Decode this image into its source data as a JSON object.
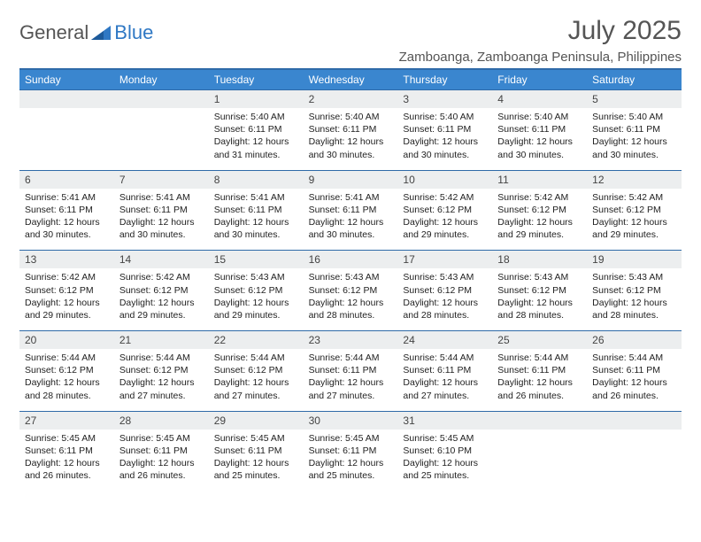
{
  "logo": {
    "part1": "General",
    "part2": "Blue"
  },
  "title": "July 2025",
  "location": "Zamboanga, Zamboanga Peninsula, Philippines",
  "colors": {
    "header_bg": "#3a86cf",
    "border": "#2f6aa8",
    "daynum_bg": "#eceeef",
    "text": "#222222",
    "title_text": "#555555",
    "logo_blue": "#2f78c4"
  },
  "day_headers": [
    "Sunday",
    "Monday",
    "Tuesday",
    "Wednesday",
    "Thursday",
    "Friday",
    "Saturday"
  ],
  "weeks": [
    [
      {
        "num": "",
        "sunrise": "",
        "sunset": "",
        "daylight1": "",
        "daylight2": ""
      },
      {
        "num": "",
        "sunrise": "",
        "sunset": "",
        "daylight1": "",
        "daylight2": ""
      },
      {
        "num": "1",
        "sunrise": "Sunrise: 5:40 AM",
        "sunset": "Sunset: 6:11 PM",
        "daylight1": "Daylight: 12 hours",
        "daylight2": "and 31 minutes."
      },
      {
        "num": "2",
        "sunrise": "Sunrise: 5:40 AM",
        "sunset": "Sunset: 6:11 PM",
        "daylight1": "Daylight: 12 hours",
        "daylight2": "and 30 minutes."
      },
      {
        "num": "3",
        "sunrise": "Sunrise: 5:40 AM",
        "sunset": "Sunset: 6:11 PM",
        "daylight1": "Daylight: 12 hours",
        "daylight2": "and 30 minutes."
      },
      {
        "num": "4",
        "sunrise": "Sunrise: 5:40 AM",
        "sunset": "Sunset: 6:11 PM",
        "daylight1": "Daylight: 12 hours",
        "daylight2": "and 30 minutes."
      },
      {
        "num": "5",
        "sunrise": "Sunrise: 5:40 AM",
        "sunset": "Sunset: 6:11 PM",
        "daylight1": "Daylight: 12 hours",
        "daylight2": "and 30 minutes."
      }
    ],
    [
      {
        "num": "6",
        "sunrise": "Sunrise: 5:41 AM",
        "sunset": "Sunset: 6:11 PM",
        "daylight1": "Daylight: 12 hours",
        "daylight2": "and 30 minutes."
      },
      {
        "num": "7",
        "sunrise": "Sunrise: 5:41 AM",
        "sunset": "Sunset: 6:11 PM",
        "daylight1": "Daylight: 12 hours",
        "daylight2": "and 30 minutes."
      },
      {
        "num": "8",
        "sunrise": "Sunrise: 5:41 AM",
        "sunset": "Sunset: 6:11 PM",
        "daylight1": "Daylight: 12 hours",
        "daylight2": "and 30 minutes."
      },
      {
        "num": "9",
        "sunrise": "Sunrise: 5:41 AM",
        "sunset": "Sunset: 6:11 PM",
        "daylight1": "Daylight: 12 hours",
        "daylight2": "and 30 minutes."
      },
      {
        "num": "10",
        "sunrise": "Sunrise: 5:42 AM",
        "sunset": "Sunset: 6:12 PM",
        "daylight1": "Daylight: 12 hours",
        "daylight2": "and 29 minutes."
      },
      {
        "num": "11",
        "sunrise": "Sunrise: 5:42 AM",
        "sunset": "Sunset: 6:12 PM",
        "daylight1": "Daylight: 12 hours",
        "daylight2": "and 29 minutes."
      },
      {
        "num": "12",
        "sunrise": "Sunrise: 5:42 AM",
        "sunset": "Sunset: 6:12 PM",
        "daylight1": "Daylight: 12 hours",
        "daylight2": "and 29 minutes."
      }
    ],
    [
      {
        "num": "13",
        "sunrise": "Sunrise: 5:42 AM",
        "sunset": "Sunset: 6:12 PM",
        "daylight1": "Daylight: 12 hours",
        "daylight2": "and 29 minutes."
      },
      {
        "num": "14",
        "sunrise": "Sunrise: 5:42 AM",
        "sunset": "Sunset: 6:12 PM",
        "daylight1": "Daylight: 12 hours",
        "daylight2": "and 29 minutes."
      },
      {
        "num": "15",
        "sunrise": "Sunrise: 5:43 AM",
        "sunset": "Sunset: 6:12 PM",
        "daylight1": "Daylight: 12 hours",
        "daylight2": "and 29 minutes."
      },
      {
        "num": "16",
        "sunrise": "Sunrise: 5:43 AM",
        "sunset": "Sunset: 6:12 PM",
        "daylight1": "Daylight: 12 hours",
        "daylight2": "and 28 minutes."
      },
      {
        "num": "17",
        "sunrise": "Sunrise: 5:43 AM",
        "sunset": "Sunset: 6:12 PM",
        "daylight1": "Daylight: 12 hours",
        "daylight2": "and 28 minutes."
      },
      {
        "num": "18",
        "sunrise": "Sunrise: 5:43 AM",
        "sunset": "Sunset: 6:12 PM",
        "daylight1": "Daylight: 12 hours",
        "daylight2": "and 28 minutes."
      },
      {
        "num": "19",
        "sunrise": "Sunrise: 5:43 AM",
        "sunset": "Sunset: 6:12 PM",
        "daylight1": "Daylight: 12 hours",
        "daylight2": "and 28 minutes."
      }
    ],
    [
      {
        "num": "20",
        "sunrise": "Sunrise: 5:44 AM",
        "sunset": "Sunset: 6:12 PM",
        "daylight1": "Daylight: 12 hours",
        "daylight2": "and 28 minutes."
      },
      {
        "num": "21",
        "sunrise": "Sunrise: 5:44 AM",
        "sunset": "Sunset: 6:12 PM",
        "daylight1": "Daylight: 12 hours",
        "daylight2": "and 27 minutes."
      },
      {
        "num": "22",
        "sunrise": "Sunrise: 5:44 AM",
        "sunset": "Sunset: 6:12 PM",
        "daylight1": "Daylight: 12 hours",
        "daylight2": "and 27 minutes."
      },
      {
        "num": "23",
        "sunrise": "Sunrise: 5:44 AM",
        "sunset": "Sunset: 6:11 PM",
        "daylight1": "Daylight: 12 hours",
        "daylight2": "and 27 minutes."
      },
      {
        "num": "24",
        "sunrise": "Sunrise: 5:44 AM",
        "sunset": "Sunset: 6:11 PM",
        "daylight1": "Daylight: 12 hours",
        "daylight2": "and 27 minutes."
      },
      {
        "num": "25",
        "sunrise": "Sunrise: 5:44 AM",
        "sunset": "Sunset: 6:11 PM",
        "daylight1": "Daylight: 12 hours",
        "daylight2": "and 26 minutes."
      },
      {
        "num": "26",
        "sunrise": "Sunrise: 5:44 AM",
        "sunset": "Sunset: 6:11 PM",
        "daylight1": "Daylight: 12 hours",
        "daylight2": "and 26 minutes."
      }
    ],
    [
      {
        "num": "27",
        "sunrise": "Sunrise: 5:45 AM",
        "sunset": "Sunset: 6:11 PM",
        "daylight1": "Daylight: 12 hours",
        "daylight2": "and 26 minutes."
      },
      {
        "num": "28",
        "sunrise": "Sunrise: 5:45 AM",
        "sunset": "Sunset: 6:11 PM",
        "daylight1": "Daylight: 12 hours",
        "daylight2": "and 26 minutes."
      },
      {
        "num": "29",
        "sunrise": "Sunrise: 5:45 AM",
        "sunset": "Sunset: 6:11 PM",
        "daylight1": "Daylight: 12 hours",
        "daylight2": "and 25 minutes."
      },
      {
        "num": "30",
        "sunrise": "Sunrise: 5:45 AM",
        "sunset": "Sunset: 6:11 PM",
        "daylight1": "Daylight: 12 hours",
        "daylight2": "and 25 minutes."
      },
      {
        "num": "31",
        "sunrise": "Sunrise: 5:45 AM",
        "sunset": "Sunset: 6:10 PM",
        "daylight1": "Daylight: 12 hours",
        "daylight2": "and 25 minutes."
      },
      {
        "num": "",
        "sunrise": "",
        "sunset": "",
        "daylight1": "",
        "daylight2": ""
      },
      {
        "num": "",
        "sunrise": "",
        "sunset": "",
        "daylight1": "",
        "daylight2": ""
      }
    ]
  ]
}
